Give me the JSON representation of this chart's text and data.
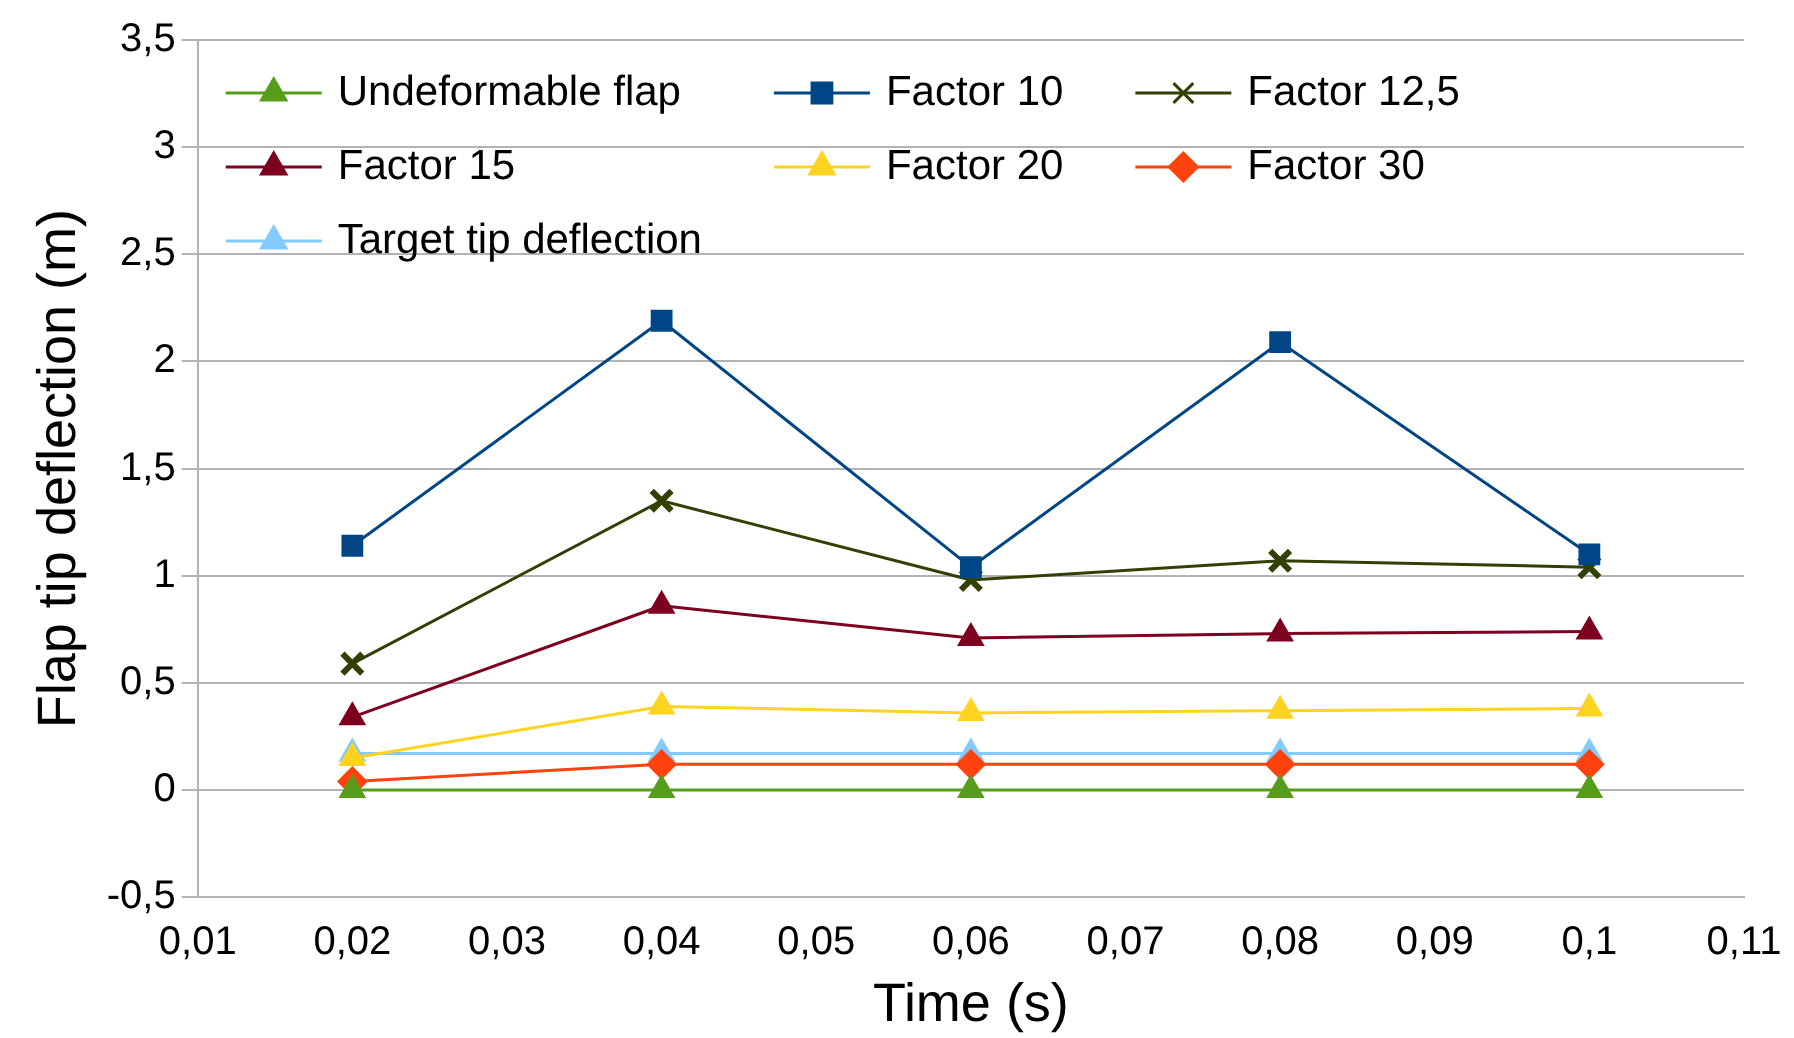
{
  "chart_data": {
    "type": "line",
    "xlabel": "Time (s)",
    "ylabel": "Flap tip deflection (m)",
    "x": [
      0.02,
      0.04,
      0.06,
      0.08,
      0.1
    ],
    "series": [
      {
        "name": "Undeformable flap",
        "color": "#579d1c",
        "marker": "triangle",
        "values": [
          0,
          0,
          0,
          0,
          0
        ]
      },
      {
        "name": "Factor 10",
        "color": "#004586",
        "marker": "square",
        "values": [
          1.14,
          2.19,
          1.04,
          2.09,
          1.1
        ]
      },
      {
        "name": "Factor 12,5",
        "color": "#314004",
        "marker": "cross",
        "values": [
          0.59,
          1.35,
          0.98,
          1.07,
          1.04
        ]
      },
      {
        "name": "Factor 15",
        "color": "#7e0021",
        "marker": "triangle",
        "values": [
          0.34,
          0.86,
          0.71,
          0.73,
          0.74
        ]
      },
      {
        "name": "Factor 20",
        "color": "#ffd320",
        "marker": "triangle",
        "values": [
          0.15,
          0.39,
          0.36,
          0.37,
          0.38
        ]
      },
      {
        "name": "Factor 30",
        "color": "#ff420e",
        "marker": "diamond",
        "values": [
          0.04,
          0.12,
          0.12,
          0.12,
          0.12
        ]
      },
      {
        "name": "Target tip deflection",
        "color": "#83caff",
        "marker": "triangle",
        "values": [
          0.17,
          0.17,
          0.17,
          0.17,
          0.17
        ]
      }
    ],
    "xlim": [
      0.01,
      0.11
    ],
    "xticks": [
      {
        "value": 0.01,
        "label": "0,01"
      },
      {
        "value": 0.02,
        "label": "0,02"
      },
      {
        "value": 0.03,
        "label": "0,03"
      },
      {
        "value": 0.04,
        "label": "0,04"
      },
      {
        "value": 0.05,
        "label": "0,05"
      },
      {
        "value": 0.06,
        "label": "0,06"
      },
      {
        "value": 0.07,
        "label": "0,07"
      },
      {
        "value": 0.08,
        "label": "0,08"
      },
      {
        "value": 0.09,
        "label": "0,09"
      },
      {
        "value": 0.1,
        "label": "0,1"
      },
      {
        "value": 0.11,
        "label": "0,11"
      }
    ],
    "ylim": [
      -0.5,
      3.5
    ],
    "yticks": [
      {
        "value": -0.5,
        "label": "-0,5"
      },
      0,
      {
        "value": 0.5,
        "label": "0,5"
      },
      1,
      {
        "value": 1.5,
        "label": "1,5"
      },
      2,
      {
        "value": 2.5,
        "label": "2,5"
      },
      3,
      {
        "value": 3.5,
        "label": "3,5"
      }
    ],
    "grid": "y",
    "legend": "top",
    "line_style": "solid"
  }
}
